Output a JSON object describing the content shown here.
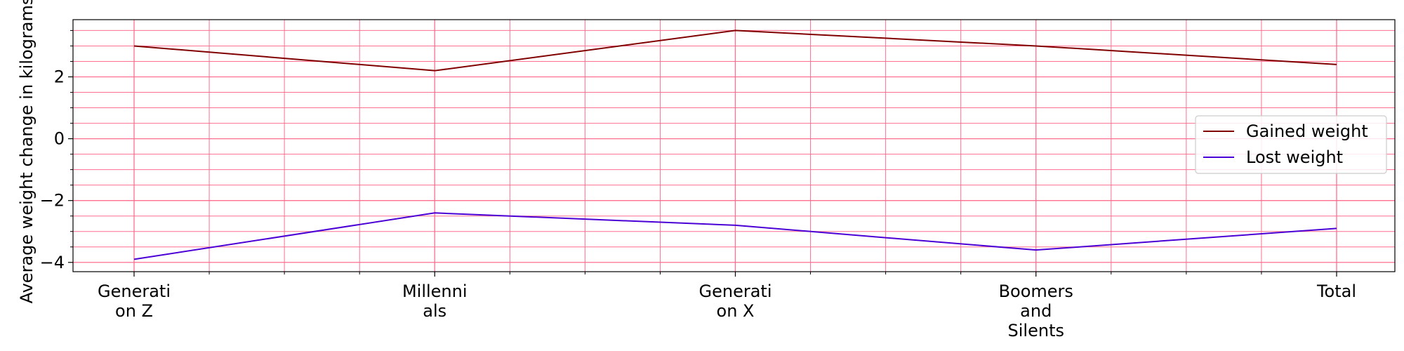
{
  "chart_data": {
    "type": "line",
    "title": "",
    "xlabel": "",
    "ylabel": "Average weight change in kilograms",
    "categories": [
      "Generati\non Z",
      "Millenni\nals",
      "Generati\non X",
      "Boomers\nand\nSilents",
      "Total"
    ],
    "series": [
      {
        "name": "Gained weight",
        "color": "#800000",
        "values": [
          3.0,
          2.2,
          3.5,
          3.0,
          2.4
        ]
      },
      {
        "name": "Lost weight",
        "color": "#4b00d6",
        "values": [
          -3.9,
          -2.4,
          -2.8,
          -3.6,
          -2.9
        ]
      }
    ],
    "ylim": [
      -4.3,
      3.85
    ],
    "yticks": [
      -4,
      -2,
      0,
      2
    ],
    "grid": true,
    "grid_color": "#ff6f8f",
    "legend_position": "center-right"
  }
}
